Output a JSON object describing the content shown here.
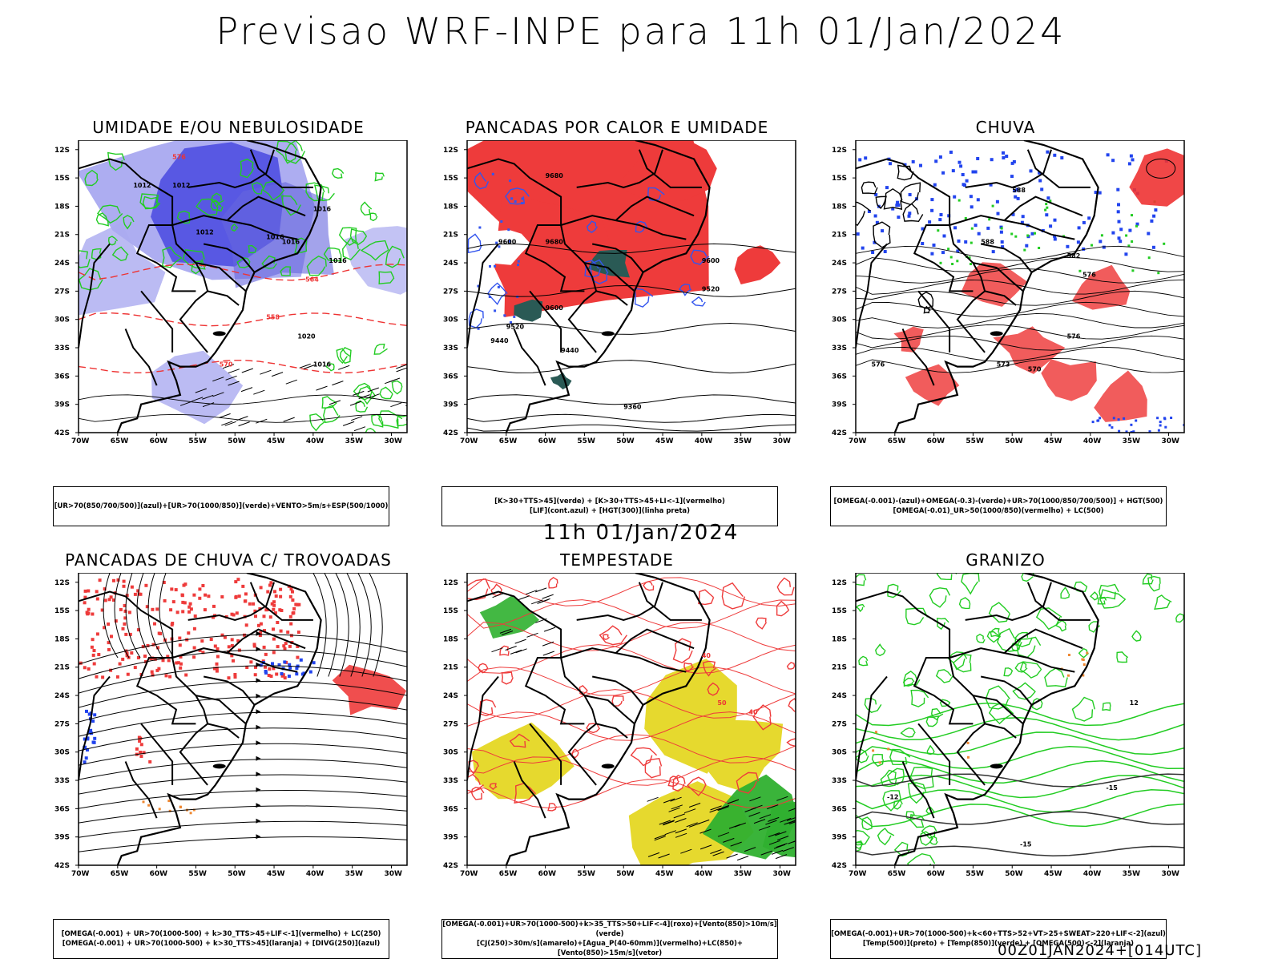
{
  "header": {
    "title": "Previsao WRF-INPE  para 11h 01/Jan/2024"
  },
  "middle": {
    "title": "11h 01/Jan/2024"
  },
  "footer": {
    "run": "00Z01JAN2024+[014UTC]"
  },
  "axes": {
    "lat_labels": [
      "12S",
      "15S",
      "18S",
      "21S",
      "24S",
      "27S",
      "30S",
      "33S",
      "36S",
      "39S",
      "42S"
    ],
    "lon_labels": [
      "70W",
      "65W",
      "60W",
      "55W",
      "50W",
      "45W",
      "40W",
      "35W",
      "30W"
    ]
  },
  "panels": [
    {
      "title": "UMIDADE E/OU NEBULOSIDADE",
      "legend": [
        "[UR>70(850/700/500)](azul)+[UR>70(1000/850)](verde)+VENTO>5m/s+ESP(500/1000)"
      ],
      "contour_labels": [
        "1012",
        "1012",
        "1016",
        "1016",
        "1012",
        "1016",
        "1020",
        "1016",
        "1016",
        "564",
        "576",
        "558",
        "570"
      ]
    },
    {
      "title": "PANCADAS POR CALOR E UMIDADE",
      "legend": [
        "[K>30+TTS>45](verde) + [K>30+TTS>45+LI<-1](vermelho)",
        "[LIF](cont.azul) + [HGT(300)](linha preta)"
      ],
      "contour_labels": [
        "9680",
        "9680",
        "9600",
        "9600",
        "9520",
        "9440",
        "9440",
        "9360",
        "9520",
        "9600"
      ]
    },
    {
      "title": "CHUVA",
      "legend": [
        "[OMEGA(-0.001)-(azul)+OMEGA(-0.3)-(verde)+UR>70(1000/850/700/500)] + HGT(500)",
        "[OMEGA(-0.01)_UR>50(1000/850)(vermelho) + LC(500)"
      ],
      "contour_labels": [
        "588",
        "588",
        "582",
        "576",
        "576",
        "573",
        "570",
        "576"
      ]
    },
    {
      "title": "PANCADAS DE CHUVA C/ TROVOADAS",
      "legend": [
        "[OMEGA(-0.001) + UR>70(1000-500) + k>30_TTS>45+LIF<-1](vermelho) + LC(250)",
        "[OMEGA(-0.001) + UR>70(1000-500) + k>30_TTS>45](laranja) + [DIVG(250)](azul)"
      ],
      "contour_labels": []
    },
    {
      "title": "TEMPESTADE",
      "legend": [
        "[OMEGA(-0.001)+UR>70(1000-500)+k>35_TTS>50+LIF<-4](roxo)+[Vento(850)>10m/s](verde)",
        "[CJ(250)>30m/s](amarelo)+[Agua_P(40-60mm)](vermelho)+LC(850)+[Vento(850)>15m/s](vetor)"
      ],
      "contour_labels": [
        "40",
        "50",
        "40"
      ]
    },
    {
      "title": "GRANIZO",
      "legend": [
        "[OMEGA(-0.001)+UR>70(1000-500)+k<60+TTS>52+VT>25+SWEAT>220+LIF<-2](azul)",
        "[Temp(500)](preto) + [Temp(850)](verde) + [OMEGA(500)<-2](laranja)"
      ],
      "contour_labels": [
        "-12",
        "-15",
        "-15",
        "12"
      ]
    }
  ]
}
